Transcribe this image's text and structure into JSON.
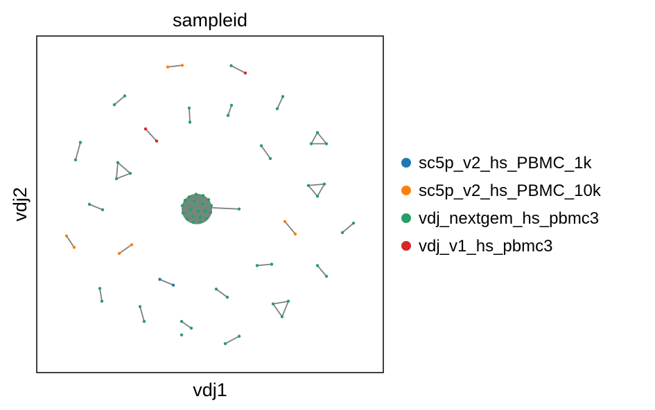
{
  "chart_data": {
    "type": "scatter",
    "title": "sampleid",
    "xlabel": "vdj1",
    "ylabel": "vdj2",
    "ticks": "none",
    "grid": false,
    "legend_placement": "right",
    "edge_color": "#7f7f7f",
    "xlim": [
      0,
      100
    ],
    "ylim": [
      0,
      100
    ],
    "series": [
      {
        "name": "sc5p_v2_hs_PBMC_1k",
        "color": "#1f77b4",
        "points": [
          [
            35.5,
            27.7
          ],
          [
            39.4,
            26.0
          ]
        ]
      },
      {
        "name": "sc5p_v2_hs_PBMC_10k",
        "color": "#ff7f0e",
        "points": [
          [
            37.8,
            90.8
          ],
          [
            42.0,
            91.3
          ],
          [
            71.6,
            44.9
          ],
          [
            74.6,
            41.2
          ],
          [
            8.6,
            40.6
          ],
          [
            10.8,
            37.2
          ],
          [
            23.8,
            35.4
          ],
          [
            27.4,
            38.0
          ]
        ]
      },
      {
        "name": "vdj_nextgem_hs_pbmc3",
        "color": "#279e68",
        "points": [
          [
            56.1,
            91.2
          ],
          [
            22.4,
            79.6
          ],
          [
            25.4,
            82.2
          ],
          [
            44.0,
            78.6
          ],
          [
            44.2,
            74.4
          ],
          [
            55.2,
            76.4
          ],
          [
            56.2,
            79.4
          ],
          [
            69.4,
            78.4
          ],
          [
            71.0,
            82.0
          ],
          [
            81.0,
            71.3
          ],
          [
            79.2,
            68.0
          ],
          [
            83.6,
            68.0
          ],
          [
            12.6,
            68.4
          ],
          [
            11.2,
            63.2
          ],
          [
            64.8,
            67.4
          ],
          [
            67.4,
            63.6
          ],
          [
            23.4,
            62.4
          ],
          [
            27.0,
            59.2
          ],
          [
            23.0,
            57.6
          ],
          [
            78.4,
            55.6
          ],
          [
            83.0,
            56.0
          ],
          [
            81.0,
            52.4
          ],
          [
            15.2,
            50.0
          ],
          [
            19.0,
            48.4
          ],
          [
            58.4,
            48.6
          ],
          [
            91.4,
            44.4
          ],
          [
            88.2,
            41.6
          ],
          [
            63.6,
            31.8
          ],
          [
            67.8,
            32.2
          ],
          [
            81.0,
            31.8
          ],
          [
            83.6,
            28.6
          ],
          [
            18.2,
            25.0
          ],
          [
            18.8,
            21.2
          ],
          [
            51.8,
            24.8
          ],
          [
            55.0,
            22.4
          ],
          [
            68.2,
            20.4
          ],
          [
            72.6,
            21.2
          ],
          [
            70.8,
            16.6
          ],
          [
            29.8,
            19.6
          ],
          [
            31.0,
            15.2
          ],
          [
            41.8,
            15.2
          ],
          [
            44.6,
            13.2
          ],
          [
            41.8,
            11.2
          ],
          [
            54.4,
            8.6
          ],
          [
            58.4,
            10.8
          ],
          [
            44.0,
            52.2
          ],
          [
            46.0,
            53.0
          ],
          [
            48.0,
            52.6
          ],
          [
            49.6,
            51.4
          ],
          [
            50.4,
            49.6
          ],
          [
            50.2,
            47.6
          ],
          [
            49.0,
            45.8
          ],
          [
            47.2,
            44.8
          ],
          [
            45.2,
            44.6
          ],
          [
            43.4,
            45.6
          ],
          [
            42.2,
            47.4
          ],
          [
            42.0,
            49.6
          ],
          [
            42.8,
            51.2
          ],
          [
            45.4,
            50.8
          ],
          [
            47.8,
            50.2
          ],
          [
            44.4,
            48.4
          ],
          [
            46.6,
            48.0
          ],
          [
            48.6,
            48.0
          ],
          [
            45.0,
            46.4
          ],
          [
            47.2,
            46.2
          ]
        ]
      },
      {
        "name": "vdj_v1_hs_pbmc3",
        "color": "#d62728",
        "points": [
          [
            60.2,
            89.0
          ],
          [
            31.4,
            72.4
          ],
          [
            34.6,
            68.8
          ]
        ]
      }
    ],
    "edges": [
      [
        [
          37.8,
          90.8
        ],
        [
          42.0,
          91.3
        ]
      ],
      [
        [
          56.1,
          91.2
        ],
        [
          60.2,
          89.0
        ]
      ],
      [
        [
          22.4,
          79.6
        ],
        [
          25.4,
          82.2
        ]
      ],
      [
        [
          44.0,
          78.6
        ],
        [
          44.2,
          74.4
        ]
      ],
      [
        [
          55.2,
          76.4
        ],
        [
          56.2,
          79.4
        ]
      ],
      [
        [
          69.4,
          78.4
        ],
        [
          71.0,
          82.0
        ]
      ],
      [
        [
          31.4,
          72.4
        ],
        [
          34.6,
          68.8
        ]
      ],
      [
        [
          81.0,
          71.3
        ],
        [
          79.2,
          68.0
        ]
      ],
      [
        [
          79.2,
          68.0
        ],
        [
          83.6,
          68.0
        ]
      ],
      [
        [
          83.6,
          68.0
        ],
        [
          81.0,
          71.3
        ]
      ],
      [
        [
          12.6,
          68.4
        ],
        [
          11.2,
          63.2
        ]
      ],
      [
        [
          64.8,
          67.4
        ],
        [
          67.4,
          63.6
        ]
      ],
      [
        [
          23.4,
          62.4
        ],
        [
          27.0,
          59.2
        ]
      ],
      [
        [
          27.0,
          59.2
        ],
        [
          23.0,
          57.6
        ]
      ],
      [
        [
          23.0,
          57.6
        ],
        [
          23.4,
          62.4
        ]
      ],
      [
        [
          78.4,
          55.6
        ],
        [
          83.0,
          56.0
        ]
      ],
      [
        [
          83.0,
          56.0
        ],
        [
          81.0,
          52.4
        ]
      ],
      [
        [
          81.0,
          52.4
        ],
        [
          78.4,
          55.6
        ]
      ],
      [
        [
          15.2,
          50.0
        ],
        [
          19.0,
          48.4
        ]
      ],
      [
        [
          50.2,
          49.0
        ],
        [
          58.4,
          48.6
        ]
      ],
      [
        [
          71.6,
          44.9
        ],
        [
          74.6,
          41.2
        ]
      ],
      [
        [
          91.4,
          44.4
        ],
        [
          88.2,
          41.6
        ]
      ],
      [
        [
          8.6,
          40.6
        ],
        [
          10.8,
          37.2
        ]
      ],
      [
        [
          23.8,
          35.4
        ],
        [
          27.4,
          38.0
        ]
      ],
      [
        [
          63.6,
          31.8
        ],
        [
          67.8,
          32.2
        ]
      ],
      [
        [
          81.0,
          31.8
        ],
        [
          83.6,
          28.6
        ]
      ],
      [
        [
          35.5,
          27.7
        ],
        [
          39.4,
          26.0
        ]
      ],
      [
        [
          18.2,
          25.0
        ],
        [
          18.8,
          21.2
        ]
      ],
      [
        [
          51.8,
          24.8
        ],
        [
          55.0,
          22.4
        ]
      ],
      [
        [
          68.2,
          20.4
        ],
        [
          72.6,
          21.2
        ]
      ],
      [
        [
          72.6,
          21.2
        ],
        [
          70.8,
          16.6
        ]
      ],
      [
        [
          70.8,
          16.6
        ],
        [
          68.2,
          20.4
        ]
      ],
      [
        [
          29.8,
          19.6
        ],
        [
          31.0,
          15.2
        ]
      ],
      [
        [
          41.8,
          15.2
        ],
        [
          44.6,
          13.2
        ]
      ],
      [
        [
          54.4,
          8.6
        ],
        [
          58.4,
          10.8
        ]
      ]
    ],
    "dense_cluster": {
      "center": [
        46.2,
        48.6
      ],
      "radius": 4.4,
      "fill": "#6f8a7c"
    }
  }
}
